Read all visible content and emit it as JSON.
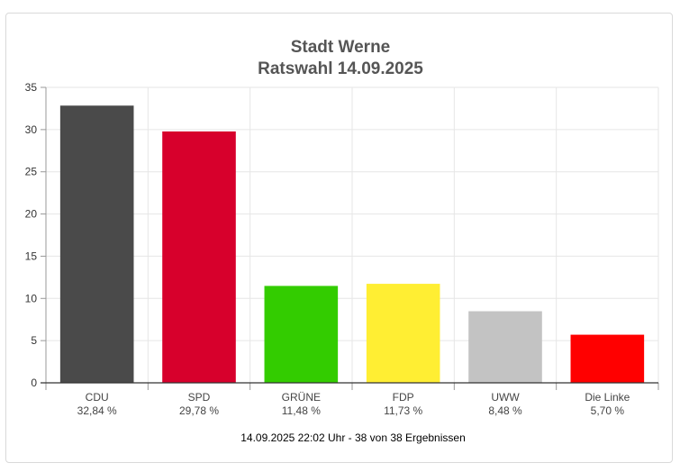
{
  "chart_data": {
    "type": "bar",
    "title": "Stadt Werne",
    "subtitle": "Ratswahl 14.09.2025",
    "categories": [
      "CDU",
      "SPD",
      "GRÜNE",
      "FDP",
      "UWW",
      "Die Linke"
    ],
    "values": [
      32.84,
      29.78,
      11.48,
      11.73,
      8.48,
      5.7
    ],
    "value_labels": [
      "32,84 %",
      "29,78 %",
      "11,48 %",
      "11,73 %",
      "8,48 %",
      "5,70 %"
    ],
    "colors": [
      "#4a4a4a",
      "#d7002c",
      "#33cc00",
      "#ffee33",
      "#c3c3c3",
      "#ff0000"
    ],
    "yticks": [
      "0",
      "5",
      "10",
      "15",
      "20",
      "25",
      "30",
      "35"
    ],
    "ylim": [
      0,
      35
    ],
    "grid": true,
    "footer": "14.09.2025 22:02 Uhr - 38 von 38 Ergebnissen"
  }
}
